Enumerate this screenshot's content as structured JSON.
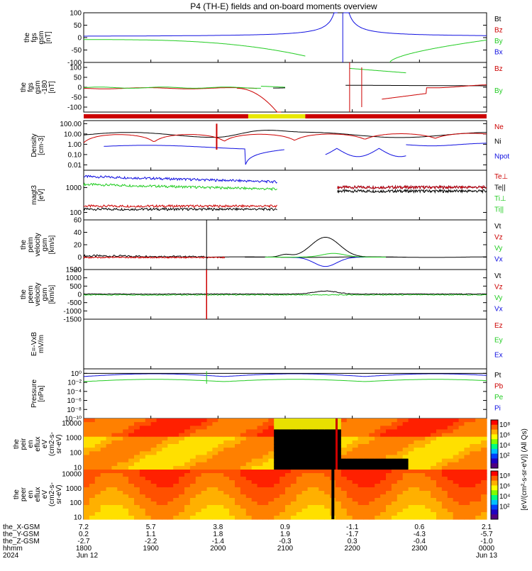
{
  "title": "P4 (TH-E) fields and on-board moments overview",
  "colors": {
    "black": "#000000",
    "red": "#cc0000",
    "green": "#22cc22",
    "blue": "#1010e0",
    "yellow": "#e8e800"
  },
  "chart_data": {
    "type": "line",
    "time_ticks": [
      "1800",
      "1900",
      "2000",
      "2100",
      "2200",
      "2300",
      "0000"
    ],
    "date_labels": {
      "start": "Jun 12",
      "end": "Jun 13",
      "year": "2024"
    },
    "ephemeris": [
      {
        "label": "the_X-GSM",
        "values": [
          "7.2",
          "5.7",
          "3.8",
          "0.9",
          "-1.1",
          "0.6",
          "2.1"
        ]
      },
      {
        "label": "the_Y-GSM",
        "values": [
          "0.2",
          "1.1",
          "1.8",
          "1.9",
          "-1.7",
          "-4.3",
          "-5.7"
        ]
      },
      {
        "label": "the_Z-GSM",
        "values": [
          "-2.7",
          "-2.2",
          "-1.4",
          "-0.3",
          "0.3",
          "-0.4",
          "-1.0"
        ]
      },
      {
        "label": "hhmm",
        "values": [
          "1800",
          "1900",
          "2000",
          "2100",
          "2200",
          "2300",
          "0000"
        ]
      }
    ],
    "panels": [
      {
        "id": "fgs",
        "ylabel": [
          "the",
          "fgs",
          "gsm",
          "[nT]"
        ],
        "scale": "linear",
        "ylim": [
          -100,
          100
        ],
        "ticks": [
          "100",
          "50",
          "0",
          "-50",
          "-100"
        ],
        "legend": [
          {
            "text": "Bt",
            "color": "black"
          },
          {
            "text": "Bz",
            "color": "red"
          },
          {
            "text": "By",
            "color": "green"
          },
          {
            "text": "Bx",
            "color": "blue"
          }
        ]
      },
      {
        "id": "fgs2",
        "ylabel": [
          "the",
          "fgs",
          "gsm",
          "-180",
          "[nT]"
        ],
        "scale": "linear",
        "ylim": [
          -125,
          125
        ],
        "ticks": [
          "100",
          "50",
          "0",
          "-50",
          "-100"
        ],
        "legend": [
          {
            "text": "Bz",
            "color": "red"
          },
          {
            "text": "By",
            "color": "green"
          }
        ]
      },
      {
        "id": "density",
        "ylabel": [
          "Density",
          "[cm-3]"
        ],
        "scale": "log",
        "ylim": [
          0.003,
          200
        ],
        "ticks": [
          "100.00",
          "10.00",
          "1.00",
          "0.10",
          "0.01"
        ],
        "legend": [
          {
            "text": "Ne",
            "color": "red"
          },
          {
            "text": "Ni",
            "color": "black"
          },
          {
            "text": "Npot",
            "color": "blue"
          }
        ]
      },
      {
        "id": "temp",
        "ylabel": [
          "magt3",
          "[eV]"
        ],
        "scale": "log",
        "ylim": [
          50,
          5000
        ],
        "ticks": [
          "1000",
          "100"
        ],
        "legend": [
          {
            "text": "Te⊥",
            "color": "red"
          },
          {
            "text": "Te||",
            "color": "black"
          },
          {
            "text": "Ti⊥",
            "color": "green"
          },
          {
            "text": "Ti||",
            "color": "green"
          }
        ]
      },
      {
        "id": "peim",
        "ylabel": [
          "the",
          "peim",
          "velocity",
          "gsm",
          "[km/s]"
        ],
        "scale": "linear",
        "ylim": [
          -20,
          60
        ],
        "ticks": [
          "60",
          "40",
          "20",
          "0",
          "-20"
        ],
        "legend": [
          {
            "text": "Vt",
            "color": "black"
          },
          {
            "text": "Vz",
            "color": "red"
          },
          {
            "text": "Vy",
            "color": "green"
          },
          {
            "text": "Vx",
            "color": "blue"
          }
        ]
      },
      {
        "id": "peem",
        "ylabel": [
          "the",
          "peem",
          "velocity",
          "gsm",
          "[km/s]"
        ],
        "scale": "linear",
        "ylim": [
          -1500,
          1500
        ],
        "ticks": [
          "1500",
          "1000",
          "500",
          "0",
          "-500",
          "-1000",
          "-1500"
        ],
        "legend": [
          {
            "text": "Vt",
            "color": "black"
          },
          {
            "text": "Vz",
            "color": "red"
          },
          {
            "text": "Vy",
            "color": "green"
          },
          {
            "text": "Vx",
            "color": "blue"
          }
        ]
      },
      {
        "id": "efield",
        "ylabel": [
          "E=-VxB",
          "mV/m"
        ],
        "scale": "linear",
        "ylim": [
          -1,
          1
        ],
        "ticks": [],
        "legend": [
          {
            "text": "Ez",
            "color": "red"
          },
          {
            "text": "Ey",
            "color": "green"
          },
          {
            "text": "Ex",
            "color": "blue"
          }
        ]
      },
      {
        "id": "pressure",
        "ylabel": [
          "Pressure",
          "[nPa]"
        ],
        "scale": "log",
        "ylim": [
          1e-10,
          10
        ],
        "ticks": [
          "10⁰",
          "10⁻²",
          "10⁻⁴",
          "10⁻⁶",
          "10⁻⁸",
          "10⁻¹⁰"
        ],
        "legend": [
          {
            "text": "Pt",
            "color": "black"
          },
          {
            "text": "Pb",
            "color": "red"
          },
          {
            "text": "Pe",
            "color": "green"
          },
          {
            "text": "Pi",
            "color": "blue"
          }
        ]
      },
      {
        "id": "peir",
        "ylabel": [
          "the",
          "peir",
          "en",
          "eflux",
          "eV",
          "(cm2-s-",
          "sr-eV)"
        ],
        "scale": "log",
        "ylim": [
          7,
          20000
        ],
        "ticks": [
          "10000",
          "1000",
          "100",
          "10"
        ],
        "legend": []
      },
      {
        "id": "peer",
        "ylabel": [
          "the",
          "peer",
          "en",
          "eflux",
          "eV",
          "(cm2-s-",
          "sr-eV)"
        ],
        "scale": "log",
        "ylim": [
          7,
          20000
        ],
        "ticks": [
          "10000",
          "1000",
          "100",
          "10"
        ],
        "legend": []
      }
    ],
    "spacecraft_bar": [
      {
        "from": 1800,
        "to": 2045,
        "color": "red"
      },
      {
        "from": 2045,
        "to": 2130,
        "color": "yellow"
      },
      {
        "from": 2130,
        "to": 2400,
        "color": "red"
      }
    ],
    "colorbar": {
      "label": "[eV/(cm²-s-sr-eV)] (All Qs)",
      "ticks": [
        "10⁸",
        "10⁶",
        "10⁴",
        "10²"
      ]
    }
  }
}
